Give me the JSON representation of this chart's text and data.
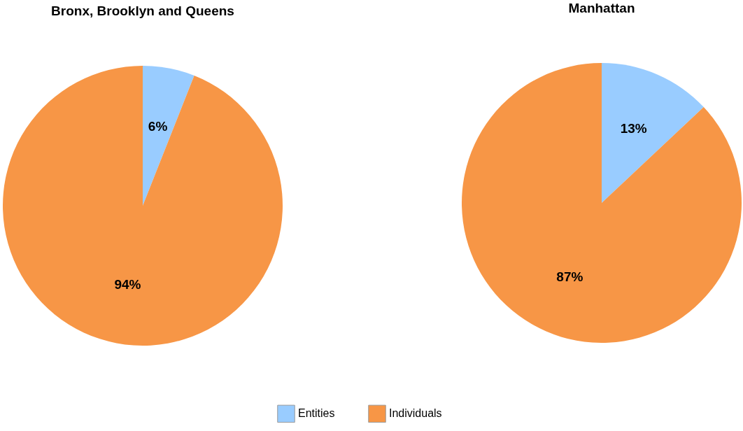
{
  "chart_data": [
    {
      "type": "pie",
      "title": "Bronx, Brooklyn and Queens",
      "categories": [
        "Entities",
        "Individuals"
      ],
      "values": [
        6,
        94
      ],
      "colors": [
        "#99ccff",
        "#f79646"
      ],
      "value_labels": [
        "6%",
        "94%"
      ],
      "legend": "bottom"
    },
    {
      "type": "pie",
      "title": "Manhattan",
      "categories": [
        null,
        null
      ],
      "values": [
        13,
        87
      ],
      "colors": [
        "#99ccff",
        "#f79646"
      ],
      "value_labels": [
        "13%",
        "87%"
      ]
    }
  ]
}
